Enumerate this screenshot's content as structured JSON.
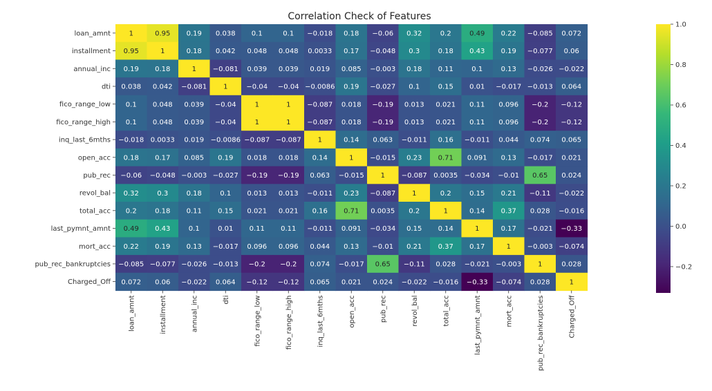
{
  "chart_data": {
    "type": "heatmap",
    "title": "Correlation Check of Features",
    "xlabel": "",
    "ylabel": "",
    "rows": [
      "loan_amnt",
      "installment",
      "annual_inc",
      "dti",
      "fico_range_low",
      "fico_range_high",
      "inq_last_6mths",
      "open_acc",
      "pub_rec",
      "revol_bal",
      "total_acc",
      "last_pymnt_amnt",
      "mort_acc",
      "pub_rec_bankruptcies",
      "Charged_Off"
    ],
    "columns": [
      "loan_amnt",
      "installment",
      "annual_inc",
      "dti",
      "fico_range_low",
      "fico_range_high",
      "inq_last_6mths",
      "open_acc",
      "pub_rec",
      "revol_bal",
      "total_acc",
      "last_pymnt_amnt",
      "mort_acc",
      "pub_rec_bankruptcies",
      "Charged_Off"
    ],
    "values": [
      [
        1,
        0.95,
        0.19,
        0.038,
        0.1,
        0.1,
        -0.018,
        0.18,
        -0.06,
        0.32,
        0.2,
        0.49,
        0.22,
        -0.085,
        0.072
      ],
      [
        0.95,
        1,
        0.18,
        0.042,
        0.048,
        0.048,
        0.0033,
        0.17,
        -0.048,
        0.3,
        0.18,
        0.43,
        0.19,
        -0.077,
        0.06
      ],
      [
        0.19,
        0.18,
        1,
        -0.081,
        0.039,
        0.039,
        0.019,
        0.085,
        -0.003,
        0.18,
        0.11,
        0.1,
        0.13,
        -0.026,
        -0.022
      ],
      [
        0.038,
        0.042,
        -0.081,
        1,
        -0.04,
        -0.04,
        -0.0086,
        0.19,
        -0.027,
        0.1,
        0.15,
        0.01,
        -0.017,
        -0.013,
        0.064
      ],
      [
        0.1,
        0.048,
        0.039,
        -0.04,
        1,
        1,
        -0.087,
        0.018,
        -0.19,
        0.013,
        0.021,
        0.11,
        0.096,
        -0.2,
        -0.12
      ],
      [
        0.1,
        0.048,
        0.039,
        -0.04,
        1,
        1,
        -0.087,
        0.018,
        -0.19,
        0.013,
        0.021,
        0.11,
        0.096,
        -0.2,
        -0.12
      ],
      [
        -0.018,
        0.0033,
        0.019,
        -0.0086,
        -0.087,
        -0.087,
        1,
        0.14,
        0.063,
        -0.011,
        0.16,
        -0.011,
        0.044,
        0.074,
        0.065
      ],
      [
        0.18,
        0.17,
        0.085,
        0.19,
        0.018,
        0.018,
        0.14,
        1,
        -0.015,
        0.23,
        0.71,
        0.091,
        0.13,
        -0.017,
        0.021
      ],
      [
        -0.06,
        -0.048,
        -0.003,
        -0.027,
        -0.19,
        -0.19,
        0.063,
        -0.015,
        1,
        -0.087,
        0.0035,
        -0.034,
        -0.01,
        0.65,
        0.024
      ],
      [
        0.32,
        0.3,
        0.18,
        0.1,
        0.013,
        0.013,
        -0.011,
        0.23,
        -0.087,
        1,
        0.2,
        0.15,
        0.21,
        -0.11,
        -0.022
      ],
      [
        0.2,
        0.18,
        0.11,
        0.15,
        0.021,
        0.021,
        0.16,
        0.71,
        0.0035,
        0.2,
        1,
        0.14,
        0.37,
        0.028,
        -0.016
      ],
      [
        0.49,
        0.43,
        0.1,
        0.01,
        0.11,
        0.11,
        -0.011,
        0.091,
        -0.034,
        0.15,
        0.14,
        1,
        0.17,
        -0.021,
        -0.33
      ],
      [
        0.22,
        0.19,
        0.13,
        -0.017,
        0.096,
        0.096,
        0.044,
        0.13,
        -0.01,
        0.21,
        0.37,
        0.17,
        1,
        -0.003,
        -0.074
      ],
      [
        -0.085,
        -0.077,
        -0.026,
        -0.013,
        -0.2,
        -0.2,
        0.074,
        -0.017,
        0.65,
        -0.11,
        0.028,
        -0.021,
        -0.003,
        1,
        0.028
      ],
      [
        0.072,
        0.06,
        -0.022,
        0.064,
        -0.12,
        -0.12,
        0.065,
        0.021,
        0.024,
        -0.022,
        -0.016,
        -0.33,
        -0.074,
        0.028,
        1
      ]
    ],
    "value_range": [
      -0.33,
      1.0
    ],
    "colormap": "viridis",
    "colorbar": {
      "ticks": [
        1.0,
        0.8,
        0.6,
        0.4,
        0.2,
        0.0,
        -0.2
      ],
      "tick_labels": [
        "1.0",
        "0.8",
        "0.6",
        "0.4",
        "0.2",
        "0.0",
        "−0.2"
      ]
    },
    "annotated": true,
    "grid": false
  }
}
